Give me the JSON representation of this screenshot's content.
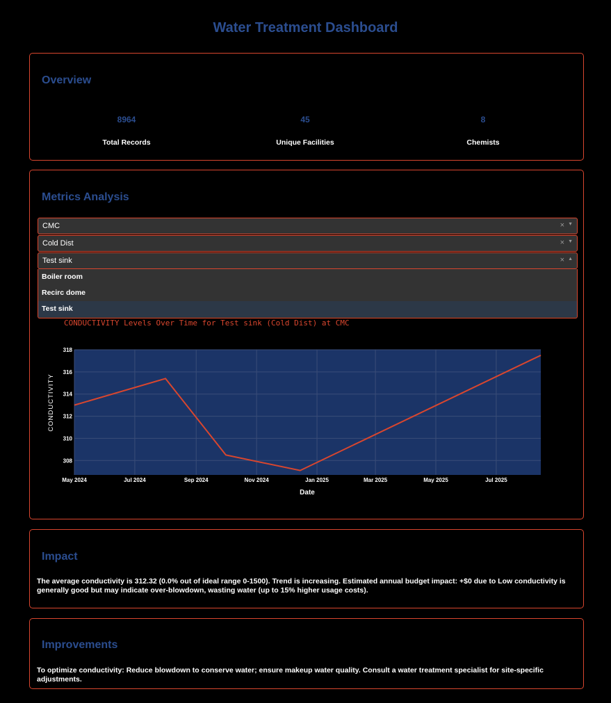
{
  "page": {
    "title": "Water Treatment Dashboard"
  },
  "overview": {
    "title": "Overview",
    "stats": [
      {
        "value": "8964",
        "label": "Total Records"
      },
      {
        "value": "45",
        "label": "Unique Facilities"
      },
      {
        "value": "8",
        "label": "Chemists"
      }
    ]
  },
  "metrics": {
    "title": "Metrics Analysis",
    "dropdowns": [
      {
        "value": "CMC",
        "clear": "×",
        "arrow": "▼"
      },
      {
        "value": "Cold Dist",
        "clear": "×",
        "arrow": "▼"
      },
      {
        "value": "Test sink",
        "clear": "×",
        "arrow": "▲"
      }
    ],
    "options": [
      "Boiler room",
      "Recirc dome",
      "Test sink"
    ],
    "selected_option": "Test sink"
  },
  "chart_data": {
    "type": "line",
    "title": "CONDUCTIVITY Levels Over Time for Test sink (Cold Dist) at CMC",
    "xlabel": "Date",
    "ylabel": "CONDUCTIVITY",
    "x": [
      "2024-05-01",
      "2024-08-01",
      "2024-10-01",
      "2024-12-15",
      "2025-08-15"
    ],
    "values": [
      313.0,
      315.4,
      308.5,
      307.1,
      317.5
    ],
    "x_ticks": [
      "May 2024",
      "Jul 2024",
      "Sep 2024",
      "Nov 2024",
      "Jan 2025",
      "Mar 2025",
      "May 2025",
      "Jul 2025"
    ],
    "y_ticks": [
      308,
      310,
      312,
      314,
      316,
      318
    ],
    "ylim": [
      306.7,
      318.0
    ],
    "grid": true,
    "colors": {
      "line": "#d9462e",
      "plot_bg": "#1b3467",
      "grid": "#3a4d78"
    }
  },
  "impact": {
    "title": "Impact",
    "text": "The average conductivity is 312.32 (0.0% out of ideal range 0-1500). Trend is increasing. Estimated annual budget impact: +$0 due to Low conductivity is generally good but may indicate over-blowdown, wasting water (up to 15% higher usage costs)."
  },
  "improvements": {
    "title": "Improvements",
    "text": "To optimize conductivity: Reduce blowdown to conserve water; ensure makeup water quality. Consult a water treatment specialist for site-specific adjustments."
  },
  "colors": {
    "accent": "#d9462e",
    "heading": "#2b4d8f",
    "background": "#000000"
  }
}
